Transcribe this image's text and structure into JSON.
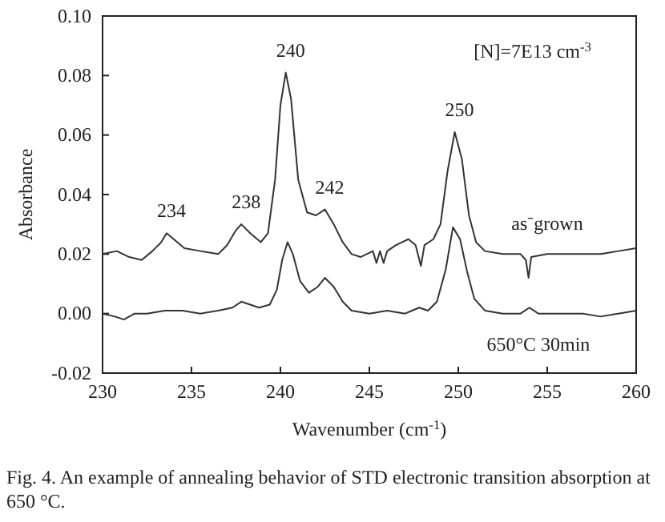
{
  "chart_data": {
    "type": "line",
    "xlabel": "Wavenumber (cm$^{-1}$)",
    "ylabel": "Absorbance",
    "xlim": [
      230,
      260
    ],
    "xticks": [
      230,
      235,
      240,
      245,
      250,
      255,
      260
    ],
    "ylim": [
      -0.02,
      0.1
    ],
    "yticks": [
      {
        "value": -0.02,
        "label": "-0.02"
      },
      {
        "value": 0,
        "label": "0.00"
      },
      {
        "value": 0.02,
        "label": "0.02"
      },
      {
        "value": 0.04,
        "label": "0.04"
      },
      {
        "value": 0.06,
        "label": "0.06"
      },
      {
        "value": 0.08,
        "label": "0.08"
      },
      {
        "value": 0.1,
        "label": "0.10"
      }
    ],
    "grid": false,
    "marker": "none",
    "line_style": "solid",
    "series": [
      {
        "name": "as⁻grown",
        "color": "#333333",
        "x": [
          230,
          230.8,
          231.5,
          232.2,
          232.8,
          233.3,
          233.6,
          234,
          234.6,
          235.5,
          236.5,
          237,
          237.5,
          237.8,
          238.3,
          238.9,
          239.3,
          239.7,
          240,
          240.3,
          240.6,
          241,
          241.5,
          242,
          242.5,
          243,
          243.5,
          244,
          244.5,
          245.2,
          245.4,
          245.6,
          245.8,
          246,
          246.5,
          247.2,
          247.6,
          247.9,
          248.1,
          248.6,
          249,
          249.4,
          249.8,
          250.2,
          250.6,
          251,
          251.5,
          252.5,
          253.5,
          253.8,
          253.95,
          254.1,
          255,
          256,
          257,
          258,
          259,
          260
        ],
        "values": [
          0.02,
          0.021,
          0.019,
          0.018,
          0.021,
          0.024,
          0.027,
          0.025,
          0.022,
          0.021,
          0.02,
          0.023,
          0.028,
          0.03,
          0.027,
          0.024,
          0.027,
          0.045,
          0.07,
          0.081,
          0.072,
          0.045,
          0.034,
          0.033,
          0.035,
          0.03,
          0.024,
          0.02,
          0.019,
          0.021,
          0.017,
          0.021,
          0.017,
          0.021,
          0.023,
          0.025,
          0.023,
          0.016,
          0.023,
          0.025,
          0.03,
          0.048,
          0.061,
          0.052,
          0.033,
          0.024,
          0.021,
          0.02,
          0.02,
          0.018,
          0.012,
          0.019,
          0.02,
          0.02,
          0.02,
          0.02,
          0.021,
          0.022
        ]
      },
      {
        "name": "650°C 30min",
        "color": "#333333",
        "x": [
          230,
          230.7,
          231.2,
          231.8,
          232.5,
          233.5,
          234.5,
          235.5,
          236.5,
          237.3,
          237.8,
          238.3,
          238.8,
          239.4,
          239.8,
          240.1,
          240.4,
          240.7,
          241.1,
          241.6,
          242.1,
          242.5,
          243,
          243.5,
          244,
          245,
          246,
          247,
          247.8,
          248.3,
          248.8,
          249.3,
          249.7,
          250.1,
          250.5,
          250.9,
          251.5,
          252.5,
          253.5,
          254,
          254.5,
          256,
          257,
          258,
          259,
          260
        ],
        "values": [
          0,
          -0.001,
          -0.002,
          0,
          0,
          0.001,
          0.001,
          0,
          0.001,
          0.002,
          0.004,
          0.003,
          0.002,
          0.003,
          0.008,
          0.018,
          0.024,
          0.02,
          0.011,
          0.007,
          0.009,
          0.012,
          0.009,
          0.004,
          0.001,
          0,
          0.001,
          0,
          0.002,
          0.001,
          0.004,
          0.015,
          0.029,
          0.025,
          0.014,
          0.005,
          0.001,
          0,
          0,
          0.002,
          0,
          0,
          0,
          -0.001,
          0,
          0.001
        ]
      }
    ],
    "annotations": [
      {
        "text": "234",
        "x": 233.6,
        "y": 0.027
      },
      {
        "text": "238",
        "x": 237.8,
        "y": 0.03
      },
      {
        "text": "240",
        "x": 240.3,
        "y": 0.081
      },
      {
        "text": "242",
        "x": 242.5,
        "y": 0.035
      },
      {
        "text": "250",
        "x": 249.8,
        "y": 0.061
      },
      "[N]=7E13 cm$^{-3}$",
      "Fig. 4. An example of annealing behavior of STD electronic transition absorption at 650 °C."
    ]
  }
}
